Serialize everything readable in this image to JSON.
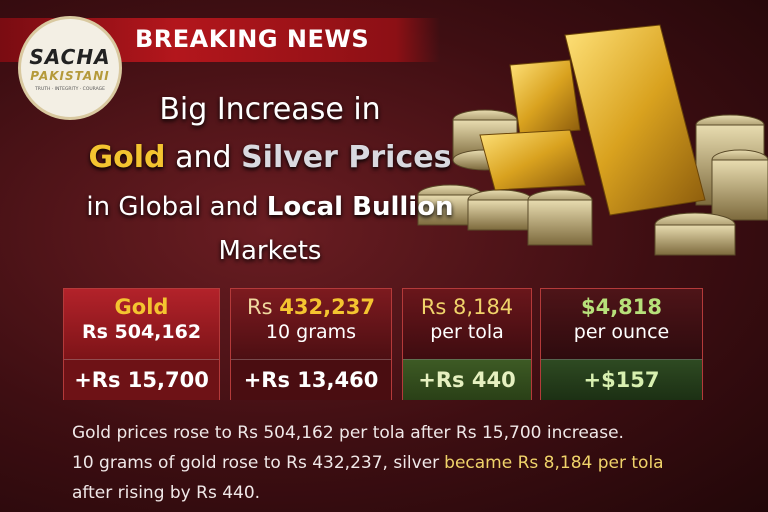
{
  "header": {
    "logo": {
      "name": "SACHA",
      "subname": "PAKISTANI",
      "tagline": "TRUTH · INTEGRITY · COURAGE"
    },
    "banner": "BREAKING NEWS"
  },
  "headline": {
    "line1": "Big Increase in",
    "line2": [
      "Gold",
      "and",
      "Silver Prices"
    ],
    "line3": [
      "in Global and",
      "Local Bullion"
    ],
    "line4": "Markets"
  },
  "cards": [
    {
      "line1": [
        "Gold"
      ],
      "line2": "Rs 504,162",
      "change": "+Rs 15,700"
    },
    {
      "line1": [
        "Rs",
        "432,237"
      ],
      "line2": "10 grams",
      "change": "+Rs 13,460"
    },
    {
      "line1": [
        "Rs",
        "8,184"
      ],
      "line2": "per tola",
      "change": "+Rs 440"
    },
    {
      "line1": [
        "$4,818"
      ],
      "line2": "per ounce",
      "change": "+$157"
    }
  ],
  "body": {
    "lines": [
      [
        "Gold prices rose to Rs 504,162 per tola after Rs 15,700 increase."
      ],
      [
        "10 grams of gold rose to Rs 432,237, silver",
        "became Rs 8,184 per tola"
      ],
      [
        "after rising by Rs 440."
      ]
    ]
  }
}
